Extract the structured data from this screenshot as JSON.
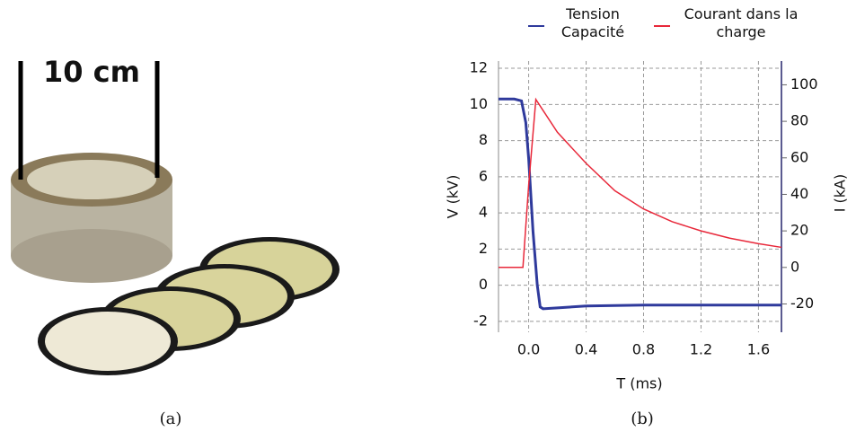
{
  "photo_label": "10 cm",
  "captions": [
    "(a)",
    "(b)"
  ],
  "chart_data": {
    "type": "line",
    "x_label": "T (ms)",
    "y_label": "V (kV)",
    "y2_label": "I (kA)",
    "xlim": [
      -0.21,
      1.76
    ],
    "xticks": [
      {
        "value": 0,
        "label": "0.0"
      },
      0.4,
      0.8,
      1.2,
      1.6
    ],
    "ylim": [
      -2.6,
      12.4
    ],
    "yticks": [
      -2,
      0,
      2,
      4,
      6,
      8,
      10,
      12
    ],
    "y2lim": [
      -35.5,
      113
    ],
    "y2ticks": [
      -20,
      0,
      20,
      40,
      60,
      80,
      100
    ],
    "grid": true,
    "series": [
      {
        "name": "Tension Capacité",
        "color": "#2f3a9c",
        "x": [
          -0.21,
          -0.1,
          -0.05,
          -0.02,
          0.0,
          0.03,
          0.06,
          0.08,
          0.1,
          0.2,
          0.4,
          0.8,
          1.2,
          1.6,
          1.76
        ],
        "values": [
          10.3,
          10.3,
          10.2,
          9,
          7,
          3,
          0,
          -1.2,
          -1.3,
          -1.25,
          -1.15,
          -1.1,
          -1.1,
          -1.1,
          -1.1
        ]
      },
      {
        "name": "Courant dans la charge",
        "color": "#e8283a",
        "axis": "y2",
        "x": [
          -0.21,
          -0.04,
          0.0,
          0.05,
          0.1,
          0.2,
          0.4,
          0.6,
          0.8,
          1.0,
          1.2,
          1.4,
          1.6,
          1.76
        ],
        "values": [
          0,
          0,
          45,
          92,
          86,
          74,
          57,
          42,
          32,
          25,
          20,
          16,
          13,
          11
        ]
      }
    ]
  }
}
